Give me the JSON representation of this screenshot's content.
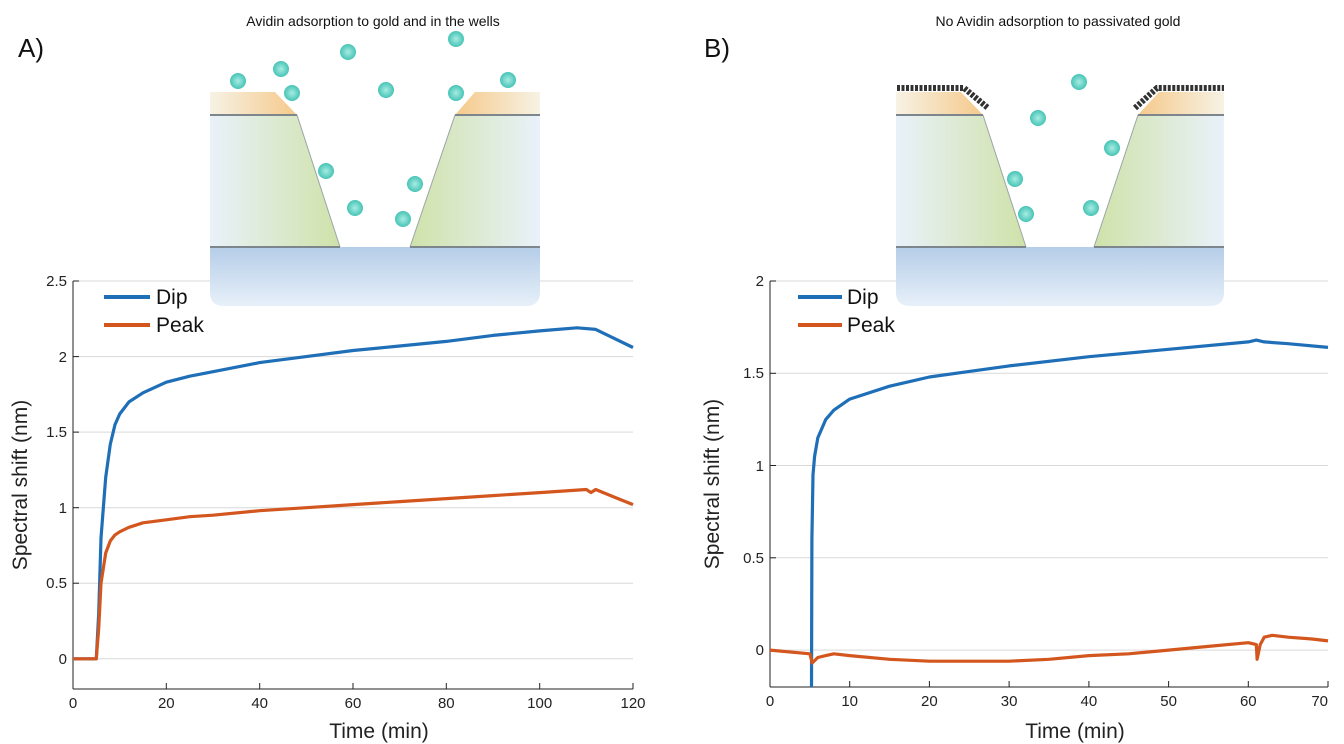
{
  "panels": [
    {
      "label": "A)",
      "schematic_title": "Avidin adsorption to gold and in the wells",
      "chart_data": {
        "type": "line",
        "xlabel": "Time (min)",
        "ylabel": "Spectral shift (nm)",
        "xlim": [
          0,
          120
        ],
        "ylim": [
          -0.2,
          2.5
        ],
        "xticks": [
          0,
          20,
          40,
          60,
          80,
          100,
          120
        ],
        "yticks": [
          0,
          0.5,
          1,
          1.5,
          2,
          2.5
        ],
        "xtick_labels": [
          "0",
          "20",
          "40",
          "60",
          "80",
          "100",
          "120"
        ],
        "ytick_labels": [
          "0",
          "0.5",
          "1",
          "1.5",
          "2",
          "2.5"
        ],
        "grid": "horizontal",
        "legend": "top-left",
        "series": [
          {
            "name": "Dip",
            "color": "#1f6fb8",
            "x": [
              0,
              5,
              5.5,
              6,
              7,
              8,
              9,
              10,
              12,
              15,
              20,
              25,
              30,
              40,
              50,
              60,
              70,
              80,
              90,
              100,
              108,
              112,
              116,
              120
            ],
            "y": [
              0,
              0,
              0.3,
              0.8,
              1.2,
              1.42,
              1.55,
              1.62,
              1.7,
              1.76,
              1.83,
              1.87,
              1.9,
              1.96,
              2.0,
              2.04,
              2.07,
              2.1,
              2.14,
              2.17,
              2.19,
              2.18,
              2.12,
              2.06
            ]
          },
          {
            "name": "Peak",
            "color": "#d4561f",
            "x": [
              0,
              5,
              5.5,
              6,
              7,
              8,
              9,
              10,
              12,
              15,
              20,
              25,
              30,
              40,
              50,
              60,
              70,
              80,
              90,
              100,
              110,
              111,
              112,
              116,
              120
            ],
            "y": [
              0,
              0,
              0.2,
              0.5,
              0.7,
              0.78,
              0.82,
              0.84,
              0.87,
              0.9,
              0.92,
              0.94,
              0.95,
              0.98,
              1.0,
              1.02,
              1.04,
              1.06,
              1.08,
              1.1,
              1.12,
              1.1,
              1.12,
              1.07,
              1.02
            ]
          }
        ]
      }
    },
    {
      "label": "B)",
      "schematic_title": "No Avidin adsorption to passivated gold",
      "chart_data": {
        "type": "line",
        "xlabel": "Time (min)",
        "ylabel": "Spectral shift (nm)",
        "xlim": [
          0,
          70
        ],
        "ylim": [
          -0.2,
          2
        ],
        "xticks": [
          0,
          10,
          20,
          30,
          40,
          50,
          60,
          70
        ],
        "yticks": [
          0,
          0.5,
          1,
          1.5,
          2
        ],
        "xtick_labels": [
          "0",
          "10",
          "20",
          "30",
          "40",
          "50",
          "60",
          "70"
        ],
        "ytick_labels": [
          "0",
          "0.5",
          "1",
          "1.5",
          "2"
        ],
        "grid": "horizontal",
        "legend": "top-left",
        "series": [
          {
            "name": "Dip",
            "color": "#1f6fb8",
            "x": [
              5.2,
              5.25,
              5.4,
              5.6,
              6,
              7,
              8,
              10,
              15,
              20,
              25,
              30,
              40,
              50,
              60,
              61,
              62,
              65,
              70
            ],
            "y": [
              -0.3,
              0.6,
              0.95,
              1.05,
              1.15,
              1.25,
              1.3,
              1.36,
              1.43,
              1.48,
              1.51,
              1.54,
              1.59,
              1.63,
              1.67,
              1.68,
              1.67,
              1.66,
              1.64
            ]
          },
          {
            "name": "Peak",
            "color": "#d4561f",
            "x": [
              0,
              5,
              5.3,
              6,
              7,
              8,
              10,
              15,
              20,
              25,
              30,
              35,
              40,
              45,
              50,
              55,
              60,
              61,
              61.1,
              61.5,
              62,
              63,
              65,
              68,
              70
            ],
            "y": [
              0,
              -0.02,
              -0.07,
              -0.04,
              -0.03,
              -0.02,
              -0.03,
              -0.05,
              -0.06,
              -0.06,
              -0.06,
              -0.05,
              -0.03,
              -0.02,
              0.0,
              0.02,
              0.04,
              0.03,
              -0.05,
              0.03,
              0.07,
              0.08,
              0.07,
              0.06,
              0.05
            ]
          }
        ]
      }
    }
  ]
}
